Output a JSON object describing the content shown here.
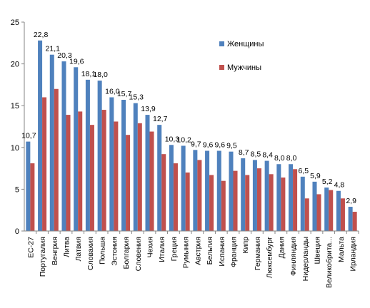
{
  "chart_data": {
    "type": "bar",
    "title": "",
    "xlabel": "",
    "ylabel": "",
    "ylim": [
      0,
      25
    ],
    "yticks": [
      0,
      5,
      10,
      15,
      20,
      25
    ],
    "grid": false,
    "legend": "right",
    "categories": [
      "ЕС-27",
      "Португалия",
      "Венгрия",
      "Литва",
      "Латвия",
      "Словакия",
      "Польша",
      "Эстония",
      "Болгария",
      "Словения",
      "Чехия",
      "Италия",
      "Греция",
      "Румыния",
      "Австрия",
      "Бельгия",
      "Испания",
      "Франция",
      "Кипр",
      "Германия",
      "Люксембург",
      "Дания",
      "Финляндия",
      "Нидерланды",
      "Швеция",
      "Великобрита...",
      "Мальта",
      "Ирландия"
    ],
    "series": [
      {
        "name": "Женщины",
        "color": "#4f81bd",
        "values": [
          10.7,
          22.8,
          21.1,
          20.3,
          19.6,
          18.1,
          18.0,
          16.0,
          15.7,
          15.3,
          13.9,
          12.7,
          10.3,
          10.2,
          9.7,
          9.6,
          9.6,
          9.5,
          8.7,
          8.5,
          8.4,
          8.0,
          8.0,
          6.5,
          5.9,
          5.2,
          4.8,
          2.9
        ],
        "labels": [
          "10,7",
          "22,8",
          "21,1",
          "20,3",
          "19,6",
          "18,1",
          "18,0",
          "16,0",
          "15,7",
          "15,3",
          "13,9",
          "12,7",
          "10,3",
          "10,2",
          "9,7",
          "9,6",
          "9,6",
          "9,5",
          "8,7",
          "8,5",
          "8,4",
          "8,0",
          "8,0",
          "6,5",
          "5,9",
          "5,2",
          "4,8",
          "2,9"
        ]
      },
      {
        "name": "Мужчины",
        "color": "#c0504d",
        "values": [
          8.1,
          16.0,
          17.0,
          13.9,
          14.3,
          12.7,
          14.5,
          13.1,
          11.5,
          12.9,
          11.9,
          9.2,
          8.1,
          7.0,
          8.5,
          6.7,
          6.0,
          7.2,
          6.7,
          7.5,
          6.8,
          6.4,
          7.4,
          3.9,
          4.4,
          4.9,
          3.9,
          2.3
        ],
        "labels": []
      }
    ]
  }
}
